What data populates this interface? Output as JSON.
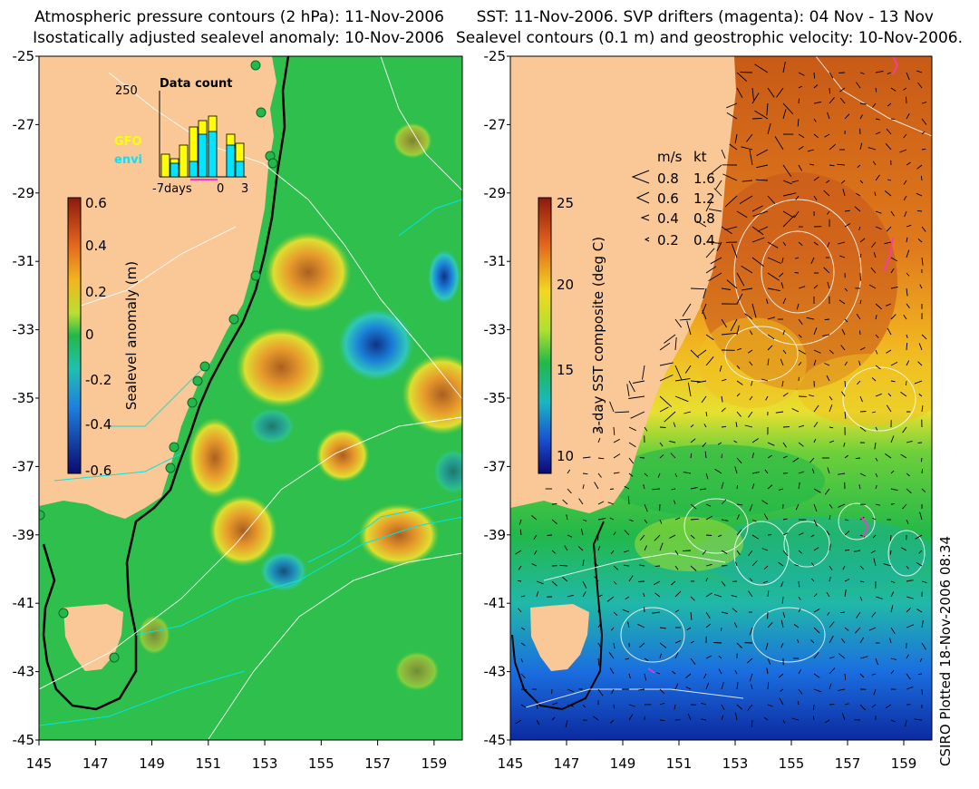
{
  "left_panel": {
    "title_line1": "Atmospheric pressure contours (2 hPa): 11-Nov-2006",
    "title_line2": "Isostatically adjusted sealevel anomaly: 10-Nov-2006",
    "colorbar": {
      "label": "Sealevel anomaly (m)",
      "ticks": [
        "0.6",
        "0.4",
        "0.2",
        "0",
        "-0.2",
        "-0.4",
        "-0.6"
      ]
    },
    "inset": {
      "title": "Data count",
      "y_tick": "250",
      "legend": [
        "GFO",
        "envi"
      ],
      "x_ticks": [
        "-7days",
        "0",
        "3"
      ],
      "gfo_color": "#ffff00",
      "envi_color": "#00e5ff"
    }
  },
  "right_panel": {
    "title_line1": "SST: 11-Nov-2006. SVP drifters (magenta): 04 Nov - 13 Nov",
    "title_line2": "Sealevel contours (0.1 m) and geostrophic velocity: 10-Nov-2006.",
    "colorbar": {
      "label": "3-day SST composite (deg C)",
      "ticks": [
        "25",
        "20",
        "15",
        "10"
      ]
    },
    "velocity_legend": {
      "header_ms": "m/s",
      "header_kt": "kt",
      "rows": [
        {
          "ms": "0.8",
          "kt": "1.6"
        },
        {
          "ms": "0.6",
          "kt": "1.2"
        },
        {
          "ms": "0.4",
          "kt": "0.8"
        },
        {
          "ms": "0.2",
          "kt": "0.4"
        }
      ]
    }
  },
  "axes": {
    "lat_ticks": [
      "-25",
      "-27",
      "-29",
      "-31",
      "-33",
      "-35",
      "-37",
      "-39",
      "-41",
      "-43",
      "-45"
    ],
    "lon_ticks": [
      "145",
      "147",
      "149",
      "151",
      "153",
      "155",
      "157",
      "159"
    ]
  },
  "footer": "CSIRO Plotted 18-Nov-2006 08:34",
  "colors": {
    "land": "#f9c896",
    "ocean_green": "#22b84a",
    "coast_line": "#000000",
    "pressure_contour": "#ffffff",
    "sst_contour": "#00e5e5"
  }
}
